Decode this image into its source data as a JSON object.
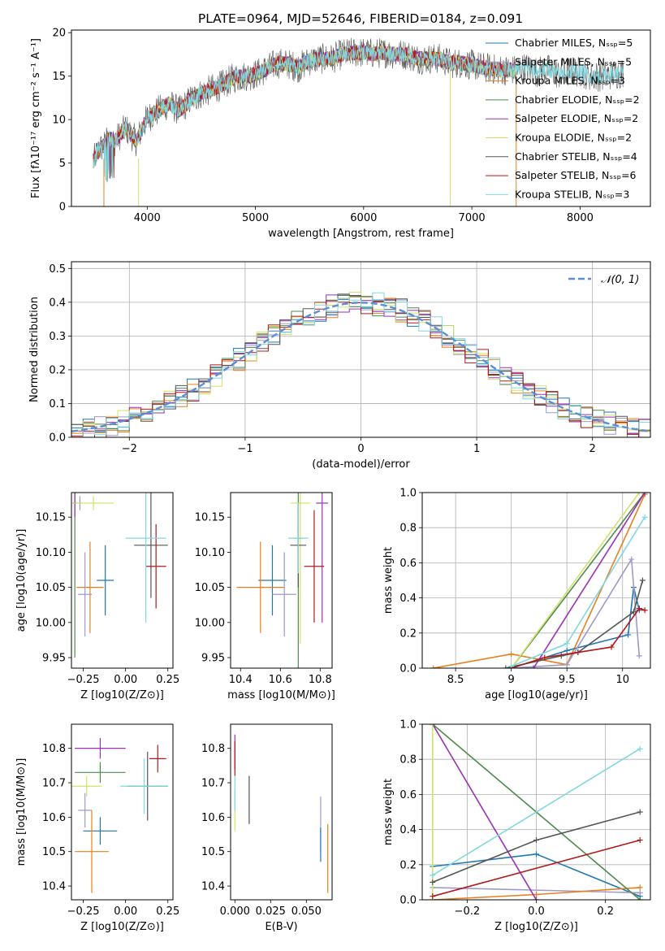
{
  "title": "PLATE=0964, MJD=52646, FIBERID=0184, z=0.091",
  "models": [
    {
      "key": "chab_miles",
      "color": "#1f77b4"
    },
    {
      "key": "salp_miles",
      "color": "#9e9ac8"
    },
    {
      "key": "krou_miles",
      "color": "#e6801f"
    },
    {
      "key": "chab_elodie",
      "color": "#4f8a4f"
    },
    {
      "key": "salp_elodie",
      "color": "#9b30b6"
    },
    {
      "key": "krou_elodie",
      "color": "#cfe36a"
    },
    {
      "key": "chab_stelib",
      "color": "#555555"
    },
    {
      "key": "salp_stelib",
      "color": "#b01a1a"
    },
    {
      "key": "krou_stelib",
      "color": "#7fd8e0"
    }
  ],
  "chart_data": [
    {
      "id": "spectrum",
      "type": "line",
      "xlabel": "wavelength [Angstrom, rest frame]",
      "ylabel": "Flux [fλ10⁻¹⁷ erg cm⁻² s⁻¹ A⁻¹]",
      "xlim": [
        3300,
        8650
      ],
      "ylim": [
        0,
        20.3
      ],
      "xticks": [
        4000,
        5000,
        6000,
        7000,
        8000
      ],
      "yticks": [
        0,
        5,
        10,
        15,
        20
      ],
      "grid": false,
      "legend_position": "right",
      "legend": [
        "Chabrier MILES, N_SSP=5",
        "Salpeter MILES, N_SSP=5",
        "Kroupa MILES, N_SSP=3",
        "Chabrier ELODIE, N_SSP=2",
        "Salpeter ELODIE, N_SSP=2",
        "Kroupa ELODIE, N_SSP=2",
        "Chabrier STELIB, N_SSP=4",
        "Salpeter STELIB, N_SSP=6",
        "Kroupa STELIB, N_SSP=3"
      ],
      "x": [
        3500,
        3550,
        3600,
        3650,
        3700,
        3800,
        3900,
        4000,
        4100,
        4200,
        4300,
        4400,
        4500,
        4600,
        4700,
        4800,
        4900,
        5000,
        5100,
        5200,
        5300,
        5400,
        5500,
        5600,
        5700,
        5800,
        5900,
        6000,
        6100,
        6200,
        6300,
        6400,
        6500,
        6600,
        6700,
        6800,
        6900,
        7000,
        7100,
        7200,
        7300,
        7400
      ],
      "y": [
        5.2,
        6.5,
        7.0,
        7.8,
        7.5,
        9.0,
        7.5,
        10.2,
        11.0,
        11.8,
        11.0,
        12.3,
        13.0,
        13.5,
        14.0,
        14.8,
        15.0,
        15.2,
        15.8,
        16.5,
        16.4,
        16.0,
        16.8,
        17.0,
        17.0,
        17.5,
        17.7,
        17.7,
        17.6,
        17.7,
        17.5,
        17.5,
        17.0,
        17.0,
        17.0,
        16.5,
        16.5,
        16.3,
        16.0,
        15.8,
        15.7,
        15.7
      ],
      "stelib_extension_x": [
        7500,
        7600,
        7700,
        7800,
        7900,
        8000,
        8100,
        8200,
        8300,
        8400
      ],
      "stelib_extension_y": [
        16.0,
        15.5,
        15.8,
        15.2,
        15.5,
        15.5,
        15.0,
        15.0,
        15.2,
        15.4
      ]
    },
    {
      "id": "residual_hist",
      "type": "step-histogram",
      "xlabel": "(data-model)/error",
      "ylabel": "Normed distribution",
      "xlim": [
        -2.5,
        2.5
      ],
      "ylim": [
        0,
        0.52
      ],
      "xticks": [
        -2,
        -1,
        0,
        1,
        2
      ],
      "yticks": [
        0.0,
        0.1,
        0.2,
        0.3,
        0.4,
        0.5
      ],
      "grid": true,
      "legend_position": "top-right",
      "bins": {
        "start": -2.5,
        "width": 0.1,
        "count": 50
      },
      "reference_curve": {
        "label": "𝒩(0, 1)",
        "color": "#5b8ed8",
        "function": "normal_pdf",
        "mean": 0,
        "sd": 1
      }
    },
    {
      "id": "age_vs_Z",
      "type": "errorbar",
      "xlabel": "Z [log10(Z/Z⊙)]",
      "ylabel": "age  [log10(age/yr)]",
      "xlim": [
        -0.32,
        0.28
      ],
      "ylim": [
        9.935,
        10.185
      ],
      "xticks": [
        -0.25,
        0,
        0.25
      ],
      "xticklabels": [
        "−0.25",
        "0.00",
        "0.25"
      ],
      "yticks": [
        9.95,
        10.0,
        10.05,
        10.1,
        10.15
      ],
      "points": [
        {
          "m": 0,
          "x": -0.12,
          "y": 10.06,
          "xerr": 0.05,
          "yerr": 0.05
        },
        {
          "m": 1,
          "x": -0.27,
          "y": 10.17,
          "xerr": 0.015,
          "yerr": 0.01
        },
        {
          "m": 2,
          "x": -0.21,
          "y": 10.05,
          "xerr": 0.08,
          "yerr": 0.065
        },
        {
          "m": 3,
          "x": -0.3,
          "y": 10.17,
          "xerr": 0.012,
          "yerr": 0.22
        },
        {
          "m": 4,
          "x": -0.3,
          "y": 10.17,
          "xerr": 0.008,
          "yerr": 0.02
        },
        {
          "m": 5,
          "x": -0.19,
          "y": 10.17,
          "xerr": 0.12,
          "yerr": 0.01
        },
        {
          "m": 6,
          "x": 0.15,
          "y": 10.11,
          "xerr": 0.1,
          "yerr": 0.075
        },
        {
          "m": 7,
          "x": 0.18,
          "y": 10.08,
          "xerr": 0.06,
          "yerr": 0.06
        },
        {
          "m": 8,
          "x": 0.12,
          "y": 10.12,
          "xerr": 0.12,
          "yerr": 0.12
        },
        {
          "m": 1,
          "x": -0.24,
          "y": 10.04,
          "xerr": 0.04,
          "yerr": 0.06
        }
      ]
    },
    {
      "id": "age_vs_mass",
      "type": "errorbar",
      "xlabel": "mass [log10(M/M⊙)]",
      "ylabel": "",
      "xlim": [
        10.35,
        10.86
      ],
      "ylim": [
        9.935,
        10.185
      ],
      "xticks": [
        10.4,
        10.6,
        10.8
      ],
      "yticks": [
        9.95,
        10.0,
        10.05,
        10.1,
        10.15
      ],
      "points": [
        {
          "m": 0,
          "x": 10.56,
          "y": 10.06,
          "xerr": 0.07,
          "yerr": 0.05
        },
        {
          "m": 2,
          "x": 10.5,
          "y": 10.05,
          "xerr": 0.12,
          "yerr": 0.065
        },
        {
          "m": 3,
          "x": 10.69,
          "y": 10.12,
          "xerr": 0.02,
          "yerr": 0.2
        },
        {
          "m": 4,
          "x": 10.81,
          "y": 10.17,
          "xerr": 0.03,
          "yerr": 0.17
        },
        {
          "m": 5,
          "x": 10.7,
          "y": 10.17,
          "xerr": 0.05,
          "yerr": 0.2
        },
        {
          "m": 6,
          "x": 10.69,
          "y": 10.11,
          "xerr": 0.04,
          "yerr": 0.06
        },
        {
          "m": 7,
          "x": 10.77,
          "y": 10.08,
          "xerr": 0.05,
          "yerr": 0.08
        },
        {
          "m": 8,
          "x": 10.69,
          "y": 10.12,
          "xerr": 0.05,
          "yerr": 0.05
        },
        {
          "m": 1,
          "x": 10.62,
          "y": 10.04,
          "xerr": 0.06,
          "yerr": 0.06
        }
      ]
    },
    {
      "id": "weight_vs_age",
      "type": "line",
      "xlabel": "age  [log10(age/yr)]",
      "ylabel": "mass weight",
      "xlim": [
        8.2,
        10.25
      ],
      "ylim": [
        0,
        1.0
      ],
      "xticks": [
        8.5,
        9.0,
        9.5,
        10.0
      ],
      "yticks": [
        0.0,
        0.2,
        0.4,
        0.6,
        0.8,
        1.0
      ],
      "grid": true,
      "series": [
        {
          "m": 2,
          "x": [
            8.3,
            9.0,
            9.5,
            10.2
          ],
          "y": [
            0.0,
            0.08,
            0.02,
            0.99
          ]
        },
        {
          "m": 0,
          "x": [
            9.0,
            9.5,
            10.05,
            10.1,
            10.15
          ],
          "y": [
            0.0,
            0.1,
            0.19,
            0.46,
            0.33
          ]
        },
        {
          "m": 1,
          "x": [
            9.0,
            9.5,
            10.08,
            10.15
          ],
          "y": [
            0.0,
            0.02,
            0.62,
            0.07
          ]
        },
        {
          "m": 3,
          "x": [
            9.0,
            10.2
          ],
          "y": [
            0.0,
            1.0
          ]
        },
        {
          "m": 4,
          "x": [
            9.2,
            10.2
          ],
          "y": [
            0.0,
            1.0
          ]
        },
        {
          "m": 5,
          "x": [
            9.0,
            10.15
          ],
          "y": [
            0.0,
            1.0
          ]
        },
        {
          "m": 6,
          "x": [
            8.95,
            9.45,
            9.6,
            10.1,
            10.18
          ],
          "y": [
            0.0,
            0.07,
            0.09,
            0.32,
            0.5
          ]
        },
        {
          "m": 7,
          "x": [
            9.0,
            9.3,
            9.6,
            9.9,
            10.15,
            10.2
          ],
          "y": [
            0.0,
            0.06,
            0.09,
            0.12,
            0.34,
            0.33
          ]
        },
        {
          "m": 8,
          "x": [
            9.0,
            9.5,
            10.2
          ],
          "y": [
            0.01,
            0.14,
            0.86
          ]
        }
      ]
    },
    {
      "id": "mass_vs_Z",
      "type": "errorbar",
      "xlabel": "Z [log10(Z/Z⊙)]",
      "ylabel": "mass [log10(M/M⊙)]",
      "xlim": [
        -0.32,
        0.28
      ],
      "ylim": [
        10.36,
        10.87
      ],
      "xticks": [
        -0.25,
        0,
        0.25
      ],
      "xticklabels": [
        "−0.25",
        "0.00",
        "0.25"
      ],
      "yticks": [
        10.4,
        10.5,
        10.6,
        10.7,
        10.8
      ],
      "points": [
        {
          "m": 0,
          "x": -0.15,
          "y": 10.56,
          "xerr": 0.1,
          "yerr": 0.04
        },
        {
          "m": 1,
          "x": -0.24,
          "y": 10.62,
          "xerr": 0.04,
          "yerr": 0.05
        },
        {
          "m": 2,
          "x": -0.2,
          "y": 10.5,
          "xerr": 0.1,
          "yerr": 0.12
        },
        {
          "m": 3,
          "x": -0.15,
          "y": 10.73,
          "xerr": 0.15,
          "yerr": 0.03
        },
        {
          "m": 4,
          "x": -0.15,
          "y": 10.8,
          "xerr": 0.15,
          "yerr": 0.03
        },
        {
          "m": 5,
          "x": -0.23,
          "y": 10.69,
          "xerr": 0.09,
          "yerr": 0.03
        },
        {
          "m": 6,
          "x": 0.13,
          "y": 10.69,
          "xerr": 0.12,
          "yerr": 0.1
        },
        {
          "m": 7,
          "x": 0.19,
          "y": 10.77,
          "xerr": 0.05,
          "yerr": 0.04
        },
        {
          "m": 8,
          "x": 0.11,
          "y": 10.69,
          "xerr": 0.14,
          "yerr": 0.08
        }
      ]
    },
    {
      "id": "mass_vs_ebv",
      "type": "errorbar",
      "xlabel": "E(B-V)",
      "ylabel": "",
      "xlim": [
        -0.003,
        0.068
      ],
      "ylim": [
        10.36,
        10.87
      ],
      "xticks": [
        0.0,
        0.025,
        0.05
      ],
      "xticklabels": [
        "0.000",
        "0.025",
        "0.050"
      ],
      "yticks": [
        10.4,
        10.5,
        10.6,
        10.7,
        10.8
      ],
      "points": [
        {
          "m": 4,
          "x": 0.0,
          "y": 10.79,
          "xerr": 0,
          "yerr": 0.05
        },
        {
          "m": 7,
          "x": 0.0,
          "y": 10.77,
          "xerr": 0,
          "yerr": 0.05
        },
        {
          "m": 5,
          "x": 0.0,
          "y": 10.62,
          "xerr": 0,
          "yerr": 0.06
        },
        {
          "m": 8,
          "x": 0.0,
          "y": 10.67,
          "xerr": 0,
          "yerr": 0.05
        },
        {
          "m": 6,
          "x": 0.01,
          "y": 10.65,
          "xerr": 0,
          "yerr": 0.07
        },
        {
          "m": 1,
          "x": 0.06,
          "y": 10.58,
          "xerr": 0,
          "yerr": 0.08
        },
        {
          "m": 0,
          "x": 0.06,
          "y": 10.52,
          "xerr": 0,
          "yerr": 0.05
        },
        {
          "m": 2,
          "x": 0.065,
          "y": 10.48,
          "xerr": 0,
          "yerr": 0.1
        }
      ]
    },
    {
      "id": "weight_vs_Z",
      "type": "line",
      "xlabel": "Z [log10(Z/Z⊙)]",
      "ylabel": "mass weight",
      "xlim": [
        -0.33,
        0.33
      ],
      "ylim": [
        0,
        1.0
      ],
      "xticks": [
        -0.2,
        0.0,
        0.2
      ],
      "xticklabels": [
        "−0.2",
        "0.0",
        "0.2"
      ],
      "yticks": [
        0.0,
        0.2,
        0.4,
        0.6,
        0.8,
        1.0
      ],
      "grid": true,
      "series": [
        {
          "m": 0,
          "x": [
            -0.3,
            0.0,
            0.3
          ],
          "y": [
            0.19,
            0.26,
            0.02
          ]
        },
        {
          "m": 1,
          "x": [
            -0.3,
            0.3
          ],
          "y": [
            0.07,
            0.04
          ]
        },
        {
          "m": 2,
          "x": [
            -0.3,
            0.0,
            0.3
          ],
          "y": [
            0.0,
            0.03,
            0.07
          ]
        },
        {
          "m": 3,
          "x": [
            -0.3,
            0.3
          ],
          "y": [
            1.0,
            0.0
          ]
        },
        {
          "m": 4,
          "x": [
            -0.3,
            0.0
          ],
          "y": [
            1.0,
            0.0
          ]
        },
        {
          "m": 5,
          "x": [
            -0.3,
            -0.3
          ],
          "y": [
            0.0,
            1.0
          ]
        },
        {
          "m": 6,
          "x": [
            -0.3,
            0.0,
            0.3
          ],
          "y": [
            0.1,
            0.34,
            0.5
          ]
        },
        {
          "m": 7,
          "x": [
            -0.3,
            0.3
          ],
          "y": [
            0.02,
            0.34
          ]
        },
        {
          "m": 8,
          "x": [
            -0.3,
            0.3
          ],
          "y": [
            0.14,
            0.86
          ]
        }
      ]
    }
  ]
}
